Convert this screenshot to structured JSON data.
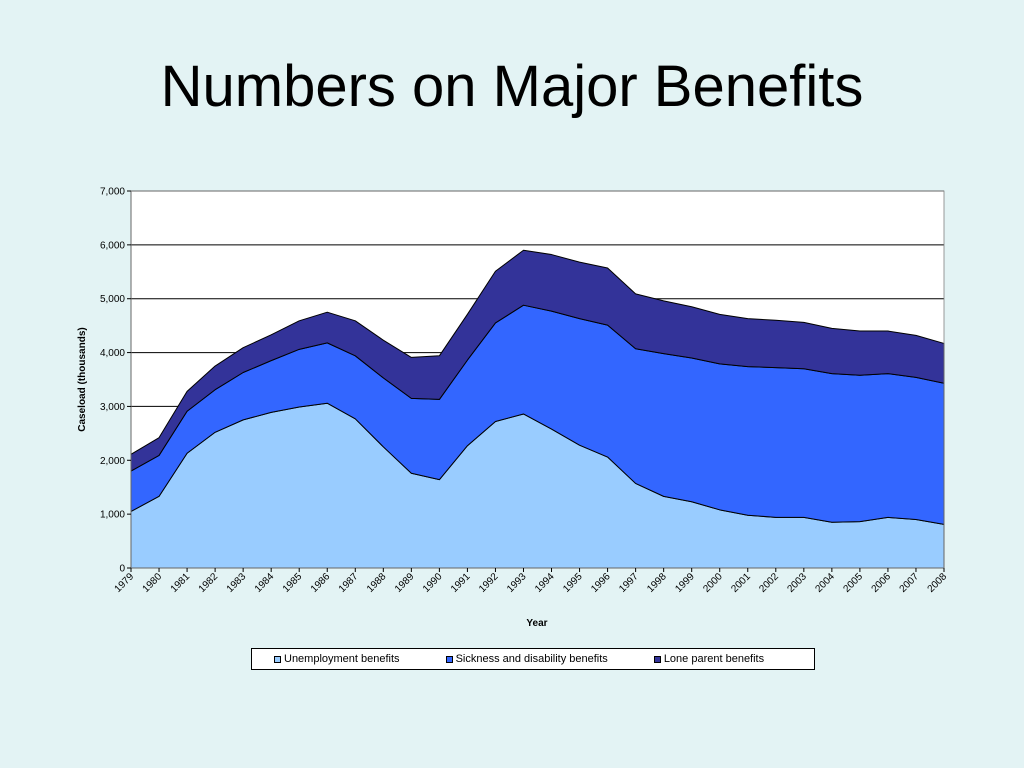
{
  "slide": {
    "title": "Numbers on Major Benefits"
  },
  "chart_data": {
    "type": "area",
    "stacked": true,
    "title": "",
    "xlabel": "Year",
    "ylabel": "Caseload (thousands)",
    "ylim": [
      0,
      7000
    ],
    "yticks": [
      "0",
      "1,000",
      "2,000",
      "3,000",
      "4,000",
      "5,000",
      "6,000",
      "7,000"
    ],
    "ytick_values": [
      0,
      1000,
      2000,
      3000,
      4000,
      5000,
      6000,
      7000
    ],
    "grid": true,
    "legend_position": "bottom",
    "x": [
      "1979",
      "1980",
      "1981",
      "1982",
      "1983",
      "1984",
      "1985",
      "1986",
      "1987",
      "1988",
      "1989",
      "1990",
      "1991",
      "1992",
      "1993",
      "1994",
      "1995",
      "1996",
      "1997",
      "1998",
      "1999",
      "2000",
      "2001",
      "2002",
      "2003",
      "2004",
      "2005",
      "2006",
      "2007",
      "2008"
    ],
    "series": [
      {
        "name": "Unemployment benefits",
        "color": "#99ccff",
        "values": [
          1050,
          1330,
          2130,
          2520,
          2750,
          2890,
          2990,
          3060,
          2770,
          2250,
          1760,
          1640,
          2270,
          2720,
          2860,
          2580,
          2280,
          2060,
          1570,
          1330,
          1230,
          1080,
          980,
          940,
          940,
          850,
          860,
          940,
          900,
          810
        ]
      },
      {
        "name": "Sickness and disability benefits",
        "color": "#3366ff",
        "values": [
          750,
          760,
          780,
          790,
          880,
          960,
          1070,
          1120,
          1170,
          1280,
          1390,
          1490,
          1590,
          1830,
          2020,
          2190,
          2350,
          2450,
          2500,
          2650,
          2670,
          2710,
          2760,
          2780,
          2760,
          2760,
          2720,
          2670,
          2640,
          2620
        ]
      },
      {
        "name": "Lone parent benefits",
        "color": "#333399",
        "values": [
          310,
          330,
          370,
          440,
          460,
          480,
          530,
          570,
          650,
          700,
          760,
          810,
          850,
          960,
          1020,
          1050,
          1050,
          1060,
          1020,
          980,
          950,
          920,
          890,
          880,
          860,
          840,
          820,
          790,
          780,
          740
        ]
      }
    ]
  }
}
